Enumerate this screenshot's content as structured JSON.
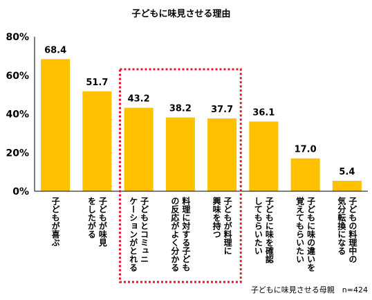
{
  "chart_data": {
    "type": "bar",
    "title": "子どもに味見させる理由",
    "categories": [
      [
        "子どもが喜ぶ"
      ],
      [
        "子どもが味見",
        "をしたがる"
      ],
      [
        "子どもとコミュニ",
        "ケーションがとれる"
      ],
      [
        "料理に対する子ども",
        "の反応がよく分かる"
      ],
      [
        "子どもが料理に",
        "興味を持つ"
      ],
      [
        "子どもに味を確認",
        "してもらいたい"
      ],
      [
        "子どもに味の違いを",
        "覚えてもらいたい"
      ],
      [
        "子どもの料理中の",
        "気分転換になる"
      ]
    ],
    "values": [
      68.4,
      51.7,
      43.2,
      38.2,
      37.7,
      36.1,
      17.0,
      5.4
    ],
    "value_labels": [
      "68.4",
      "51.7",
      "43.2",
      "38.2",
      "37.7",
      "36.1",
      "17.0",
      "5.4"
    ],
    "y_ticks": [
      "0%",
      "20%",
      "40%",
      "60%",
      "80%"
    ],
    "ylim": [
      0,
      80
    ],
    "bar_color": "#FFC000",
    "highlight": {
      "from_index": 2,
      "to_index": 4,
      "color": "#E8132B",
      "style": "dotted"
    },
    "grid": false,
    "note": "子どもに味見させる母親　n=424"
  }
}
